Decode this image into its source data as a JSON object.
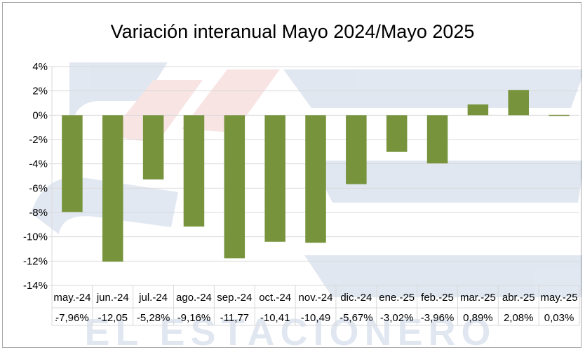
{
  "chart_data": {
    "type": "bar",
    "title": "Variación interanual Mayo 2024/Mayo 2025",
    "xlabel": "",
    "ylabel": "",
    "ylim": [
      -14,
      4
    ],
    "y_ticks": [
      "4%",
      "2%",
      "0%",
      "-2%",
      "-4%",
      "-6%",
      "-8%",
      "-10%",
      "-12%",
      "-14%"
    ],
    "y_tick_values": [
      4,
      2,
      0,
      -2,
      -4,
      -6,
      -8,
      -10,
      -12,
      -14
    ],
    "grid": true,
    "legend": "none",
    "data_table": true,
    "series_key_label": ".",
    "categories": [
      "may.-24",
      "jun.-24",
      "jul.-24",
      "ago.-24",
      "sep.-24",
      "oct.-24",
      "nov.-24",
      "dic.-24",
      "ene.-25",
      "feb.-25",
      "mar.-25",
      "abr.-25",
      "may.-25"
    ],
    "values": [
      -7.96,
      -12.05,
      -5.28,
      -9.16,
      -11.77,
      -10.41,
      -10.49,
      -5.67,
      -3.02,
      -3.96,
      0.89,
      2.08,
      0.03
    ],
    "value_labels": [
      "-7,96%",
      "-12,05",
      "-5,28%",
      "-9,16%",
      "-11,77",
      "-10,41",
      "-10,49",
      "-5,67%",
      "-3,02%",
      "-3,96%",
      "0,89%",
      "2,08%",
      "0,03%"
    ],
    "bar_color": "#77933c",
    "grid_color": "#d9d9d9",
    "watermark_text": "EL ESTACIONERO"
  }
}
